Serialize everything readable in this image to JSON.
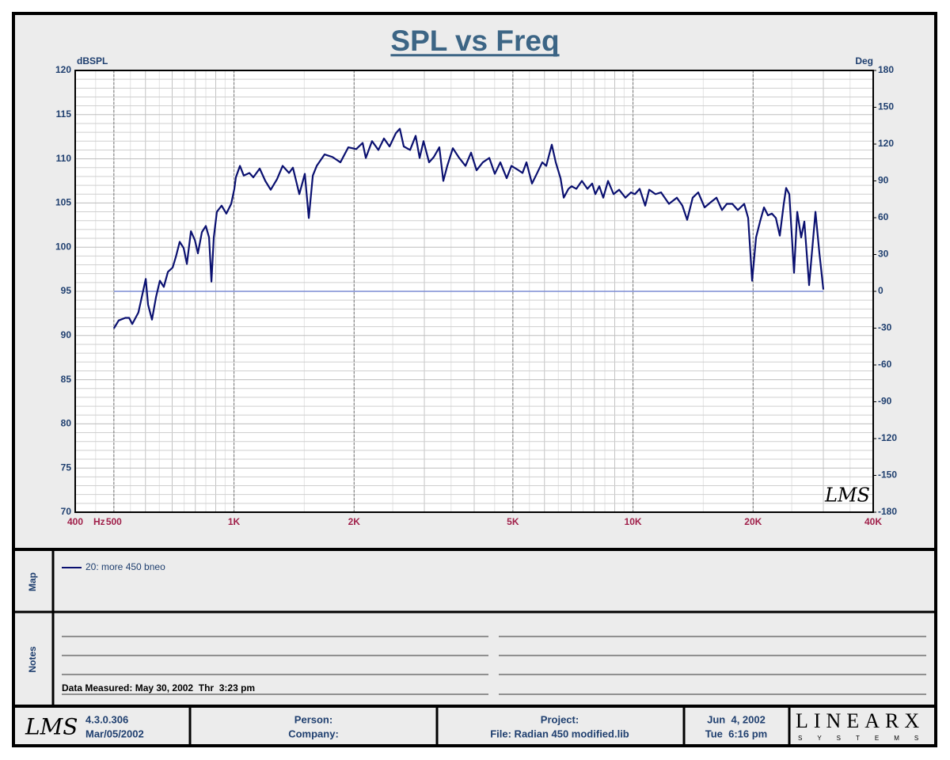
{
  "chart_data": {
    "type": "line",
    "title": "SPL vs Freq",
    "y_label": "dBSPL",
    "y2_label": "Deg",
    "x_label": "Hz",
    "watermark": "LMS",
    "xscale": "log",
    "grid": true,
    "xlim": [
      400,
      40000
    ],
    "xticks": [
      400,
      500,
      {
        "value": 1000,
        "label": "1K"
      },
      {
        "value": 2000,
        "label": "2K"
      },
      {
        "value": 5000,
        "label": "5K"
      },
      {
        "value": 10000,
        "label": "10K"
      },
      {
        "value": 20000,
        "label": "20K"
      },
      {
        "value": 40000,
        "label": "40K"
      }
    ],
    "ylim": [
      70,
      120
    ],
    "yticks": [
      70,
      75,
      80,
      85,
      90,
      95,
      100,
      105,
      110,
      115,
      120
    ],
    "y2lim": [
      -180,
      180
    ],
    "y2ticks": [
      -180,
      -150,
      -120,
      -90,
      -60,
      -30,
      0,
      30,
      60,
      90,
      120,
      150,
      180
    ],
    "series": [
      {
        "name": "20: more 450 bneo",
        "color": "#0a1070",
        "x": [
          500,
          514,
          534,
          546,
          556,
          576,
          601,
          609,
          623,
          638,
          652,
          667,
          683,
          702,
          715,
          731,
          748,
          762,
          780,
          798,
          812,
          831,
          850,
          866,
          878,
          890,
          906,
          931,
          957,
          984,
          1002,
          1011,
          1035,
          1058,
          1093,
          1118,
          1160,
          1198,
          1236,
          1282,
          1324,
          1374,
          1405,
          1458,
          1505,
          1540,
          1576,
          1612,
          1687,
          1766,
          1848,
          1934,
          2025,
          2101,
          2140,
          2218,
          2301,
          2376,
          2454,
          2545,
          2604,
          2664,
          2763,
          2853,
          2919,
          2986,
          3083,
          3168,
          3271,
          3347,
          3424,
          3536,
          3668,
          3804,
          3928,
          4055,
          4204,
          4364,
          4505,
          4651,
          4824,
          4959,
          5167,
          5286,
          5408,
          5583,
          5739,
          5925,
          6062,
          6259,
          6404,
          6583,
          6705,
          6892,
          7016,
          7212,
          7446,
          7688,
          7901,
          8047,
          8233,
          8423,
          8659,
          8941,
          9232,
          9573,
          9885,
          10113,
          10393,
          10731,
          10979,
          11388,
          11758,
          12307,
          12880,
          13298,
          13670,
          14114,
          14573,
          15116,
          15680,
          16188,
          16714,
          17183,
          17742,
          18319,
          19000,
          19439,
          19888,
          20345,
          20818,
          21300,
          21792,
          22290,
          22808,
          23332,
          23872,
          24200,
          24648,
          25332,
          25800,
          26393,
          26883,
          27630,
          28664,
          29325,
          30000
        ],
        "values": [
          90.8,
          91.7,
          92.0,
          92.0,
          91.3,
          92.6,
          96.4,
          93.5,
          91.8,
          94.4,
          96.2,
          95.5,
          97.2,
          97.7,
          98.9,
          100.6,
          99.9,
          98.1,
          101.8,
          100.8,
          99.3,
          101.7,
          102.4,
          101.1,
          96.1,
          101.1,
          104.0,
          104.7,
          103.8,
          104.9,
          106.6,
          107.9,
          109.2,
          108.1,
          108.4,
          107.9,
          108.9,
          107.5,
          106.5,
          107.7,
          109.2,
          108.4,
          109.0,
          106.0,
          108.3,
          103.3,
          108.1,
          109.2,
          110.5,
          110.2,
          109.6,
          111.3,
          111.1,
          111.8,
          110.1,
          112.0,
          111.0,
          112.3,
          111.4,
          112.9,
          113.4,
          111.4,
          111.0,
          112.6,
          110.1,
          112.0,
          109.6,
          110.2,
          111.3,
          107.5,
          109.2,
          111.2,
          110.1,
          109.2,
          110.7,
          108.7,
          109.6,
          110.1,
          108.3,
          109.6,
          107.8,
          109.2,
          108.7,
          108.4,
          109.6,
          107.2,
          108.3,
          109.6,
          109.2,
          111.6,
          109.6,
          107.8,
          105.6,
          106.6,
          106.9,
          106.6,
          107.5,
          106.6,
          107.2,
          106.0,
          106.9,
          105.6,
          107.5,
          106.0,
          106.5,
          105.6,
          106.2,
          106.0,
          106.6,
          104.7,
          106.5,
          106.0,
          106.2,
          104.9,
          105.6,
          104.7,
          103.1,
          105.6,
          106.2,
          104.5,
          105.1,
          105.6,
          104.2,
          104.9,
          104.9,
          104.2,
          104.9,
          103.3,
          96.2,
          101.1,
          102.9,
          104.5,
          103.6,
          103.8,
          103.3,
          101.3,
          104.9,
          106.7,
          106.0,
          97.1,
          104.0,
          101.1,
          102.9,
          95.7,
          104.0,
          99.3,
          95.2
        ]
      },
      {
        "color": "#7b8cd4",
        "axis": "y2",
        "x": [
          500,
          30000
        ],
        "values": [
          0,
          0
        ]
      }
    ]
  },
  "map": {
    "label": "Map"
  },
  "notes": {
    "label": "Notes",
    "measured": "Data Measured: May 30, 2002  Thr  3:23 pm"
  },
  "footer": {
    "logo": "LMS",
    "version": "4.3.0.306",
    "build_date": "Mar/05/2002",
    "person": "Person:",
    "company": "Company:",
    "project": "Project:",
    "file": "File: Radian 450 modified.lib",
    "date": "Jun  4, 2002",
    "time": "Tue  6:16 pm",
    "brand": "LINEARX",
    "brand_sub": "SYSTEMS"
  }
}
